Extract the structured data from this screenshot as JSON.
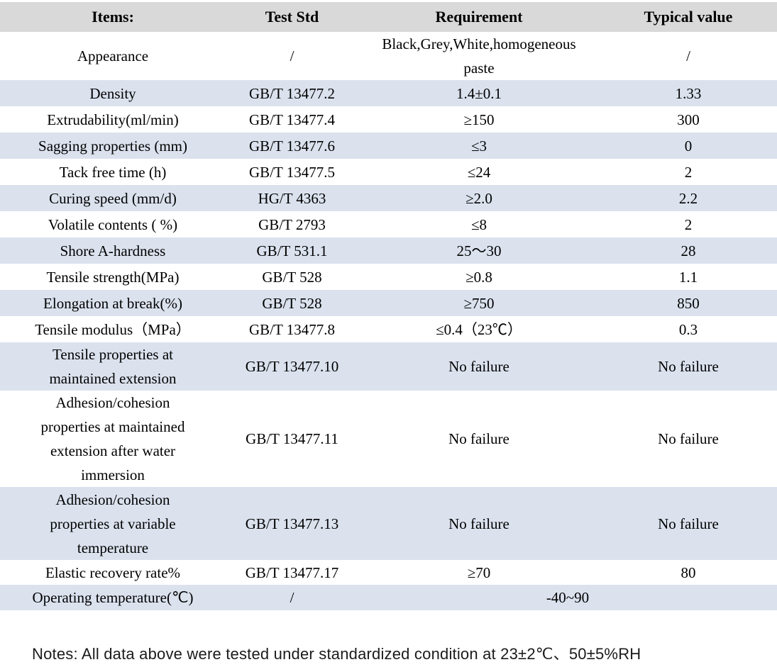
{
  "colors": {
    "header_bg": "#d9d9d9",
    "alt_row_bg": "#dbe2ee",
    "text": "#000000"
  },
  "table": {
    "headers": [
      "Items:",
      "Test Std",
      "Requirement",
      "Typical value"
    ],
    "rows": [
      {
        "item": "Appearance",
        "test_std": "/",
        "requirement": "Black,Grey,White,homogeneous\npaste",
        "typical": "/"
      },
      {
        "item": "Density",
        "test_std": "GB/T 13477.2",
        "requirement": "1.4±0.1",
        "typical": "1.33"
      },
      {
        "item": "Extrudability(ml/min)",
        "test_std": "GB/T 13477.4",
        "requirement": "≥150",
        "typical": "300"
      },
      {
        "item": "Sagging properties (mm)",
        "test_std": "GB/T 13477.6",
        "requirement": "≤3",
        "typical": "0"
      },
      {
        "item": "Tack free time (h)",
        "test_std": "GB/T 13477.5",
        "requirement": "≤24",
        "typical": "2"
      },
      {
        "item": "Curing speed (mm/d)",
        "test_std": "HG/T 4363",
        "requirement": "≥2.0",
        "typical": "2.2"
      },
      {
        "item": "Volatile contents ( %)",
        "test_std": "GB/T 2793",
        "requirement": "≤8",
        "typical": "2"
      },
      {
        "item": "Shore A-hardness",
        "test_std": "GB/T 531.1",
        "requirement": "25～30",
        "typical": "28"
      },
      {
        "item": "Tensile strength(MPa)",
        "test_std": "GB/T 528",
        "requirement": "≥0.8",
        "typical": "1.1"
      },
      {
        "item": "Elongation at break(%)",
        "test_std": "GB/T 528",
        "requirement": "≥750",
        "typical": "850"
      },
      {
        "item": "Tensile modulus（MPa）",
        "test_std": "GB/T 13477.8",
        "requirement": "≤0.4（23℃）",
        "typical": "0.3"
      },
      {
        "item": "Tensile properties at\nmaintained extension",
        "test_std": "GB/T 13477.10",
        "requirement": "No failure",
        "typical": "No failure"
      },
      {
        "item": "Adhesion/cohesion\nproperties at maintained\nextension after water\nimmersion",
        "test_std": "GB/T 13477.11",
        "requirement": "No failure",
        "typical": "No failure"
      },
      {
        "item": "Adhesion/cohesion\nproperties at variable\ntemperature",
        "test_std": "GB/T 13477.13",
        "requirement": "No failure",
        "typical": "No failure"
      },
      {
        "item": "Elastic recovery rate%",
        "test_std": "GB/T 13477.17",
        "requirement": "≥70",
        "typical": "80"
      },
      {
        "item": "Operating temperature(℃)",
        "test_std": "/",
        "requirement": "-40~90"
      }
    ]
  },
  "notes": "Notes: All data above were tested under standardized condition at 23±2℃、50±5%RH"
}
